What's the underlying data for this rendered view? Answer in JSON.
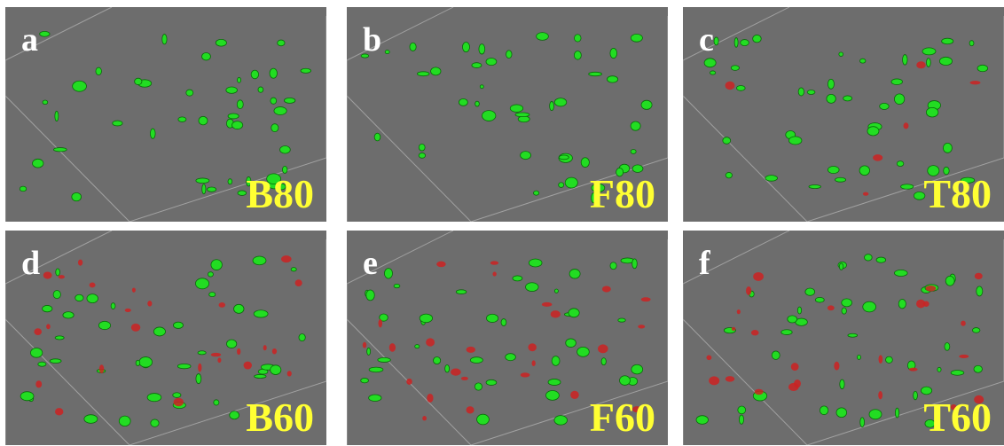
{
  "panels": [
    {
      "letter": "a",
      "label": "B80"
    },
    {
      "letter": "b",
      "label": "F80"
    },
    {
      "letter": "c",
      "label": "T80"
    },
    {
      "letter": "d",
      "label": "B60"
    },
    {
      "letter": "e",
      "label": "F60"
    },
    {
      "letter": "f",
      "label": "T60"
    }
  ]
}
